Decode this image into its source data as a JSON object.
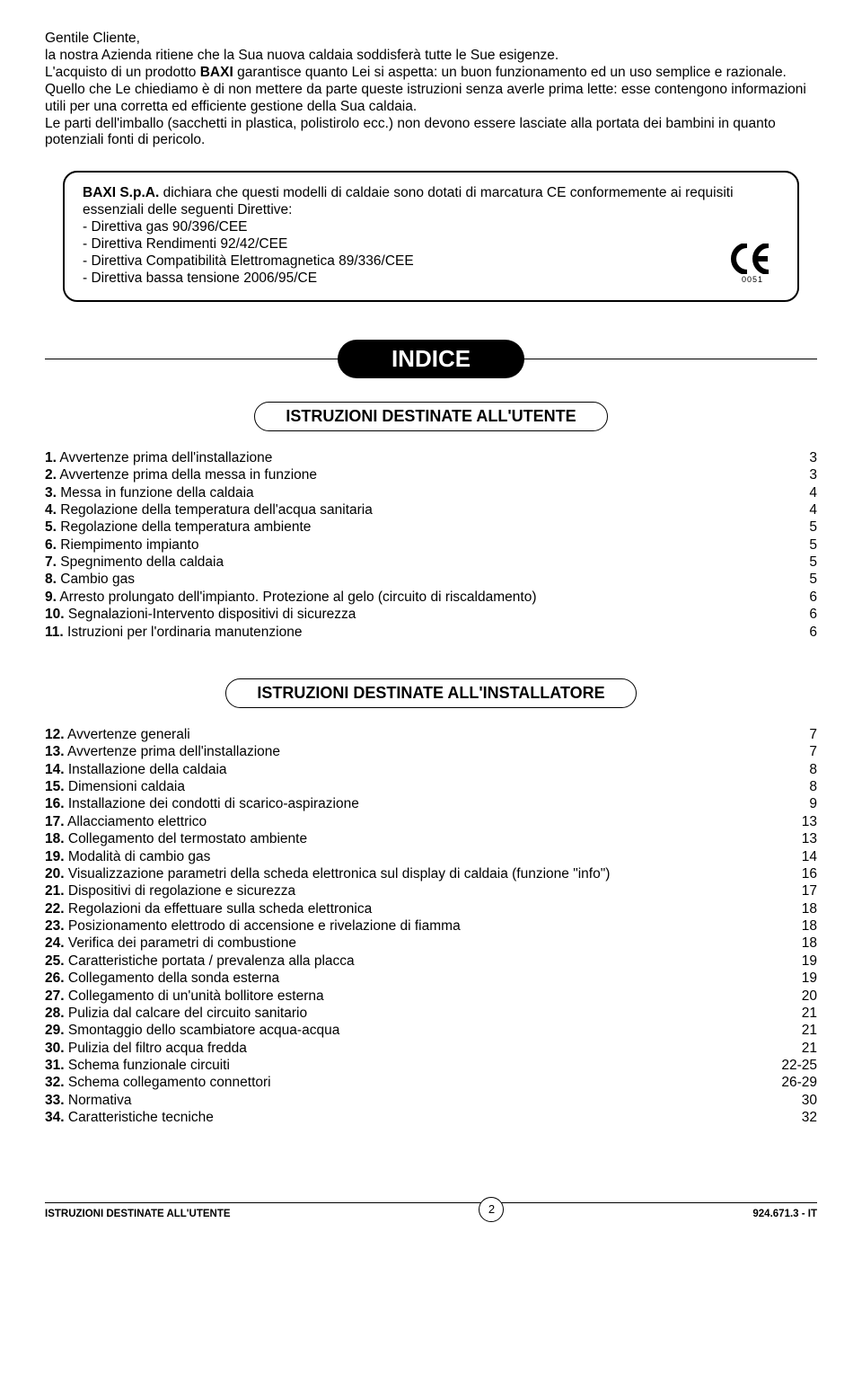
{
  "intro": {
    "p1": "Gentile Cliente,",
    "p2": "la nostra Azienda ritiene che la Sua nuova caldaia soddisferà tutte le Sue esigenze.",
    "p3_a": "L'acquisto di un prodotto ",
    "p3_b": "BAXI",
    "p3_c": " garantisce quanto Lei si aspetta: un buon funzionamento ed un uso semplice e razionale.",
    "p4": "Quello che Le chiediamo è di non mettere da parte queste istruzioni senza averle prima lette: esse contengono informazioni utili per una corretta ed efficiente gestione della Sua caldaia.",
    "p5": "Le parti dell'imballo (sacchetti in plastica, polistirolo ecc.) non devono essere lasciate alla portata dei bambini in quanto potenziali fonti di pericolo."
  },
  "notice": {
    "lead": "BAXI S.p.A.",
    "body": " dichiara che questi modelli di caldaie sono dotati di marcatura CE conformemente ai requisiti essenziali delle seguenti Direttive:",
    "d1": "- Direttiva gas 90/396/CEE",
    "d2": "- Direttiva Rendimenti 92/42/CEE",
    "d3": "- Direttiva Compatibilità Elettromagnetica 89/336/CEE",
    "d4": "- Direttiva bassa tensione 2006/95/CE",
    "ce_num": "0051"
  },
  "headings": {
    "indice": "INDICE",
    "utente": "ISTRUZIONI DESTINATE ALL'UTENTE",
    "installatore": "ISTRUZIONI DESTINATE ALL'INSTALLATORE"
  },
  "toc_user": [
    {
      "n": "1.",
      "t": " Avvertenze prima dell'installazione",
      "p": "3"
    },
    {
      "n": "2.",
      "t": " Avvertenze prima della messa in funzione",
      "p": "3"
    },
    {
      "n": "3.",
      "t": " Messa in funzione della caldaia",
      "p": "4"
    },
    {
      "n": "4.",
      "t": " Regolazione della temperatura dell'acqua sanitaria",
      "p": "4"
    },
    {
      "n": "5.",
      "t": " Regolazione della temperatura ambiente",
      "p": "5"
    },
    {
      "n": "6.",
      "t": " Riempimento impianto",
      "p": "5"
    },
    {
      "n": "7.",
      "t": " Spegnimento della caldaia",
      "p": "5"
    },
    {
      "n": "8.",
      "t": " Cambio gas",
      "p": "5"
    },
    {
      "n": "9.",
      "t": " Arresto prolungato dell'impianto. Protezione al gelo (circuito di riscaldamento)",
      "p": "6"
    },
    {
      "n": "10.",
      "t": " Segnalazioni-Intervento dispositivi di sicurezza",
      "p": "6"
    },
    {
      "n": "11.",
      "t": " Istruzioni per l'ordinaria manutenzione",
      "p": "6"
    }
  ],
  "toc_inst": [
    {
      "n": "12.",
      "t": " Avvertenze generali",
      "p": "7"
    },
    {
      "n": "13.",
      "t": " Avvertenze prima dell'installazione",
      "p": "7"
    },
    {
      "n": "14.",
      "t": " Installazione della caldaia",
      "p": "8"
    },
    {
      "n": "15.",
      "t": " Dimensioni caldaia",
      "p": "8"
    },
    {
      "n": "16.",
      "t": " Installazione dei condotti di scarico-aspirazione",
      "p": "9"
    },
    {
      "n": "17.",
      "t": " Allacciamento elettrico",
      "p": "13"
    },
    {
      "n": "18.",
      "t": " Collegamento del termostato ambiente",
      "p": "13"
    },
    {
      "n": "19.",
      "t": " Modalità di cambio gas",
      "p": "14"
    },
    {
      "n": "20.",
      "t": " Visualizzazione parametri della scheda elettronica sul display di caldaia (funzione \"info\")",
      "p": "16"
    },
    {
      "n": "21.",
      "t": " Dispositivi di regolazione e sicurezza",
      "p": "17"
    },
    {
      "n": "22.",
      "t": " Regolazioni da effettuare sulla scheda elettronica",
      "p": "18"
    },
    {
      "n": "23.",
      "t": " Posizionamento elettrodo di accensione e rivelazione di fiamma",
      "p": "18"
    },
    {
      "n": "24.",
      "t": " Verifica dei parametri di combustione",
      "p": "18"
    },
    {
      "n": "25.",
      "t": " Caratteristiche portata / prevalenza alla placca",
      "p": "19"
    },
    {
      "n": "26.",
      "t": " Collegamento della sonda esterna",
      "p": "19"
    },
    {
      "n": "27.",
      "t": " Collegamento di un'unità bollitore esterna",
      "p": "20"
    },
    {
      "n": "28.",
      "t": " Pulizia dal calcare del circuito sanitario",
      "p": "21"
    },
    {
      "n": "29.",
      "t": " Smontaggio dello scambiatore acqua-acqua",
      "p": "21"
    },
    {
      "n": "30.",
      "t": " Pulizia del filtro acqua fredda",
      "p": "21"
    },
    {
      "n": "31.",
      "t": " Schema funzionale circuiti",
      "p": "22-25"
    },
    {
      "n": "32.",
      "t": " Schema collegamento connettori",
      "p": "26-29"
    },
    {
      "n": "33.",
      "t": " Normativa",
      "p": "30"
    },
    {
      "n": "34.",
      "t": " Caratteristiche tecniche",
      "p": "32"
    }
  ],
  "footer": {
    "left": "ISTRUZIONI DESTINATE ALL'UTENTE",
    "page": "2",
    "right": "924.671.3 - IT"
  }
}
